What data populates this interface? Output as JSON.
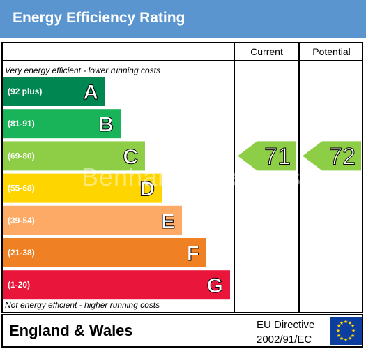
{
  "header": {
    "title": "Energy Efficiency Rating"
  },
  "columns": {
    "current": "Current",
    "potential": "Potential"
  },
  "notes": {
    "top": "Very energy efficient - lower running costs",
    "bottom": "Not energy efficient - higher running costs"
  },
  "chart_data": {
    "type": "bar",
    "bands": [
      {
        "letter": "A",
        "range": "(92 plus)",
        "color": "#008650"
      },
      {
        "letter": "B",
        "range": "(81-91)",
        "color": "#19b459"
      },
      {
        "letter": "C",
        "range": "(69-80)",
        "color": "#8dce46"
      },
      {
        "letter": "D",
        "range": "(55-68)",
        "color": "#ffd500"
      },
      {
        "letter": "E",
        "range": "(39-54)",
        "color": "#fcaa65"
      },
      {
        "letter": "F",
        "range": "(21-38)",
        "color": "#ef8023"
      },
      {
        "letter": "G",
        "range": "(1-20)",
        "color": "#e9153b"
      }
    ],
    "current": {
      "value": 71,
      "band": "C",
      "color": "#8dce46"
    },
    "potential": {
      "value": 72,
      "band": "C",
      "color": "#8dce46"
    }
  },
  "footer": {
    "region": "England & Wales",
    "directive_line1": "EU Directive",
    "directive_line2": "2002/91/EC"
  },
  "watermark": "Benham & Reeves"
}
